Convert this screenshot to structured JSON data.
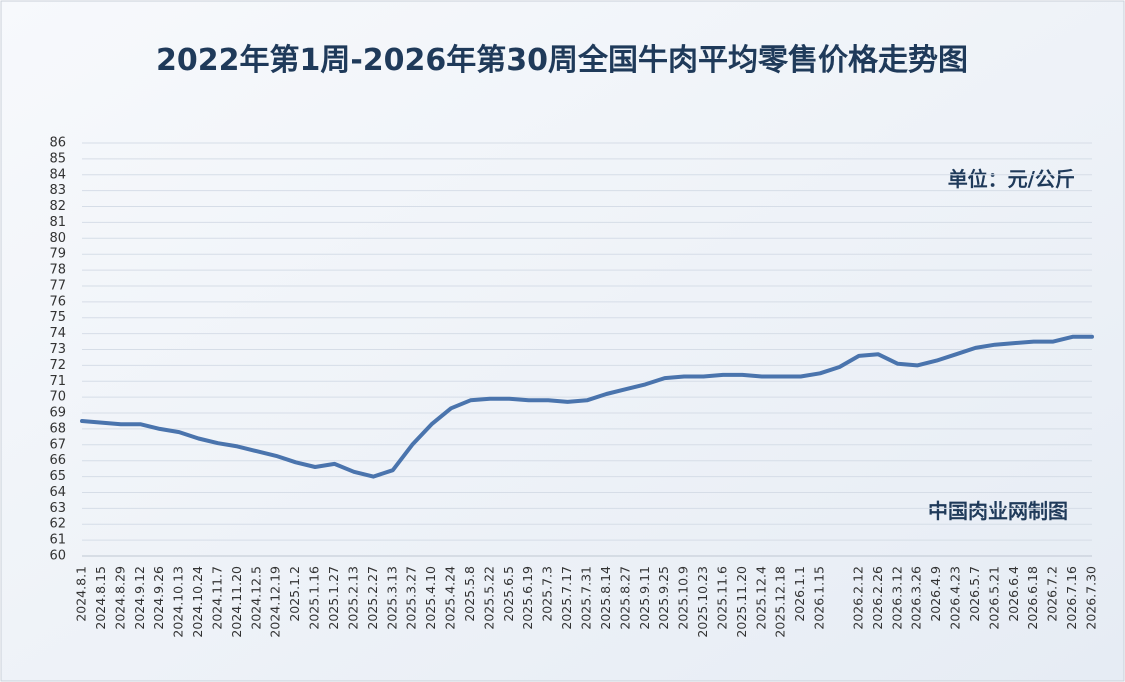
{
  "chart_data": {
    "type": "line",
    "title": "2022年第1周-2026年第30周全国牛肉平均零售价格走势图",
    "unit_note": "单位：元/公斤",
    "source_note": "中国肉业网制图",
    "categories": [
      "2024.8.1",
      "2024.8.15",
      "2024.8.29",
      "2024.9.12",
      "2024.9.26",
      "2024.10.13",
      "2024.10.24",
      "2024.11.7",
      "2024.11.20",
      "2024.12.5",
      "2024.12.19",
      "2025.1.2",
      "2025.1.16",
      "2025.1.27",
      "2025.2.13",
      "2025.2.27",
      "2025.3.13",
      "2025.3.27",
      "2025.4.10",
      "2025.4.24",
      "2025.5.8",
      "2025.5.22",
      "2025.6.5",
      "2025.6.19",
      "2025.7.3",
      "2025.7.17",
      "2025.7.31",
      "2025.8.14",
      "2025.8.27",
      "2025.9.11",
      "2025.9.25",
      "2025.10.9",
      "2025.10.23",
      "2025.11.6",
      "2025.11.20",
      "2025.12.4",
      "2025.12.18",
      "2026.1.1",
      "2026.1.15",
      null,
      "2026.2.12",
      "2026.2.26",
      "2026.3.12",
      "2026.3.26",
      "2026.4.9",
      "2026.4.23",
      "2026.5.7",
      "2026.5.21",
      "2026.6.4",
      "2026.6.18",
      "2026.7.2",
      "2026.7.16",
      "2026.7.30"
    ],
    "series": [
      {
        "color": "#4a74ad",
        "values": [
          68.5,
          68.4,
          68.3,
          68.3,
          68.0,
          67.8,
          67.4,
          67.1,
          66.9,
          66.6,
          66.3,
          65.9,
          65.6,
          65.8,
          65.3,
          65.0,
          65.4,
          67.0,
          68.3,
          69.3,
          69.8,
          69.9,
          69.9,
          69.8,
          69.8,
          69.7,
          69.8,
          70.2,
          70.5,
          70.8,
          71.2,
          71.3,
          71.3,
          71.4,
          71.4,
          71.3,
          71.3,
          71.3,
          71.5,
          71.9,
          72.6,
          72.7,
          72.1,
          72.0,
          72.3,
          72.7,
          73.1,
          73.3,
          73.4,
          73.5,
          73.5,
          73.8,
          73.8
        ]
      }
    ],
    "ylim": [
      60,
      86
    ],
    "yticks": [
      60,
      61,
      62,
      63,
      64,
      65,
      66,
      67,
      68,
      69,
      70,
      71,
      72,
      73,
      74,
      75,
      76,
      77,
      78,
      79,
      80,
      81,
      82,
      83,
      84,
      85,
      86
    ],
    "grid": true
  }
}
